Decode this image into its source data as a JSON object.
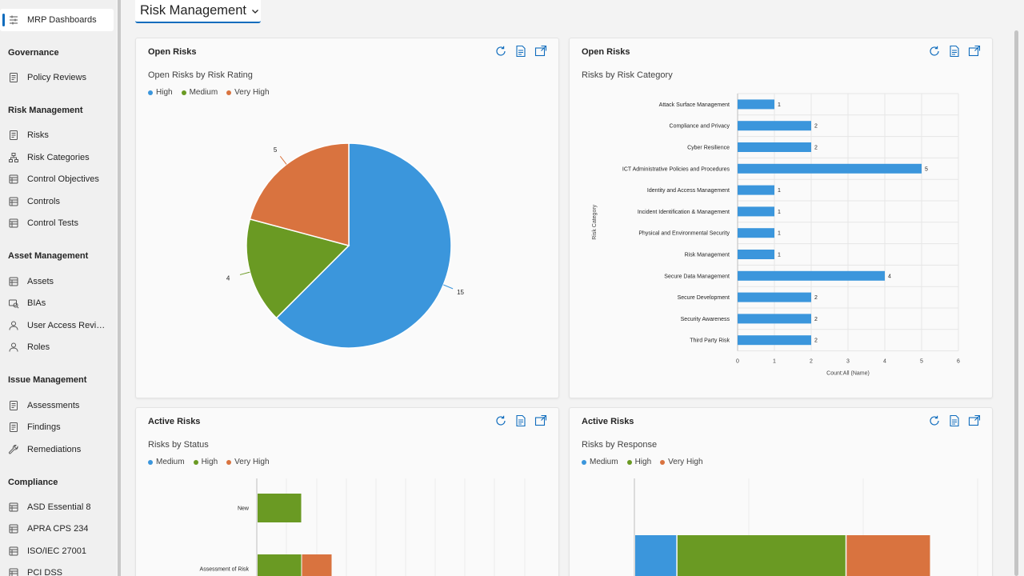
{
  "sidebar": {
    "top_item": {
      "label": "MRP Dashboards",
      "icon": "dashboard-icon"
    },
    "sections": [
      {
        "heading": "Governance",
        "items": [
          {
            "label": "Policy Reviews",
            "icon": "document-icon"
          }
        ]
      },
      {
        "heading": "Risk Management",
        "items": [
          {
            "label": "Risks",
            "icon": "document-icon"
          },
          {
            "label": "Risk Categories",
            "icon": "hierarchy-icon"
          },
          {
            "label": "Control Objectives",
            "icon": "table-icon"
          },
          {
            "label": "Controls",
            "icon": "table-icon"
          },
          {
            "label": "Control Tests",
            "icon": "table-icon"
          }
        ]
      },
      {
        "heading": "Asset Management",
        "items": [
          {
            "label": "Assets",
            "icon": "table-icon"
          },
          {
            "label": "BIAs",
            "icon": "bia-icon"
          },
          {
            "label": "User Access Revie...",
            "icon": "person-icon"
          },
          {
            "label": "Roles",
            "icon": "person-icon"
          }
        ]
      },
      {
        "heading": "Issue Management",
        "items": [
          {
            "label": "Assessments",
            "icon": "document-icon"
          },
          {
            "label": "Findings",
            "icon": "document-icon"
          },
          {
            "label": "Remediations",
            "icon": "wrench-icon"
          }
        ]
      },
      {
        "heading": "Compliance",
        "items": [
          {
            "label": "ASD Essential 8",
            "icon": "table-icon"
          },
          {
            "label": "APRA CPS 234",
            "icon": "table-icon"
          },
          {
            "label": "ISO/IEC 27001",
            "icon": "table-icon"
          },
          {
            "label": "PCI DSS",
            "icon": "table-icon"
          }
        ]
      }
    ]
  },
  "header": {
    "dashboard_title": "Risk Management"
  },
  "colors": {
    "accent": "#0f6cbd",
    "blue": "#3b96dc",
    "green": "#6a9a23",
    "orange": "#d9733f"
  },
  "cards": [
    {
      "title": "Open Risks",
      "subtitle": "Open Risks by Risk Rating",
      "legend": [
        "High",
        "Medium",
        "Very High"
      ],
      "chart_data": {
        "type": "pie",
        "title": "Open Risks by Risk Rating",
        "labels": [
          "High",
          "Medium",
          "Very High"
        ],
        "values": [
          15,
          4,
          5
        ],
        "colors": [
          "#3b96dc",
          "#6a9a23",
          "#d9733f"
        ],
        "legend_position": "top-left"
      }
    },
    {
      "title": "Open Risks",
      "subtitle": "Risks by Risk Category",
      "chart_data": {
        "type": "bar",
        "orientation": "horizontal",
        "title": "Risks by Risk Category",
        "categories": [
          "Attack Surface Management",
          "Compliance and Privacy",
          "Cyber Resilience",
          "ICT Administrative Policies and Procedures",
          "Identity and Access Management",
          "Incident Identification & Management",
          "Physical and Environmental Security",
          "Risk Management",
          "Secure Data Management",
          "Secure Development",
          "Security Awareness",
          "Third Party Risk"
        ],
        "values": [
          1,
          2,
          2,
          5,
          1,
          1,
          1,
          1,
          4,
          2,
          2,
          2
        ],
        "xlabel": "Count:All (Name)",
        "ylabel": "Risk Category",
        "xlim": [
          0,
          6
        ],
        "xticks": [
          "0",
          "1",
          "2",
          "3",
          "4",
          "5",
          "6"
        ],
        "color": "#3b96dc",
        "grid": true
      }
    },
    {
      "title": "Active Risks",
      "subtitle": "Risks by Status",
      "legend": [
        "Medium",
        "High",
        "Very High"
      ],
      "chart_data": {
        "type": "bar",
        "orientation": "horizontal",
        "stacked": true,
        "title": "Risks by Status",
        "categories": [
          "New",
          "Assessment of Risk"
        ],
        "series": [
          {
            "name": "Medium",
            "values": [
              0,
              0
            ],
            "color": "#3b96dc"
          },
          {
            "name": "High",
            "values": [
              1,
              1
            ],
            "color": "#6a9a23"
          },
          {
            "name": "Very High",
            "values": [
              0,
              1
            ],
            "color": "#d9733f"
          }
        ],
        "grid": true
      }
    },
    {
      "title": "Active Risks",
      "subtitle": "Risks by Response",
      "legend": [
        "Medium",
        "High",
        "Very High"
      ],
      "chart_data": {
        "type": "bar",
        "orientation": "horizontal",
        "stacked": true,
        "title": "Risks by Response",
        "categories": [
          ""
        ],
        "series": [
          {
            "name": "Medium",
            "values": [
              1
            ],
            "color": "#3b96dc"
          },
          {
            "name": "High",
            "values": [
              4
            ],
            "color": "#6a9a23"
          },
          {
            "name": "Very High",
            "values": [
              2
            ],
            "color": "#d9733f"
          }
        ],
        "grid": true
      }
    }
  ]
}
